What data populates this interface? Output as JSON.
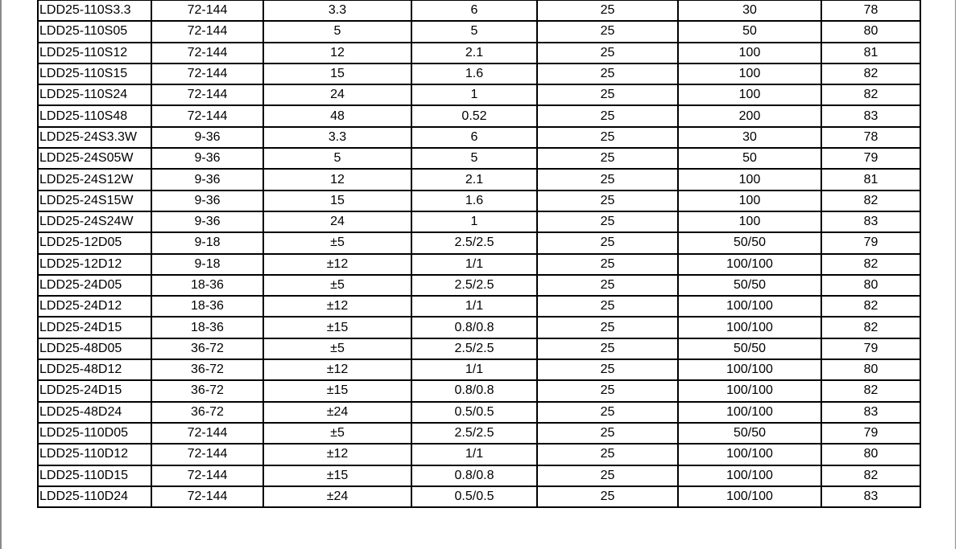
{
  "table": {
    "rows": [
      [
        "LDD25-110S3.3",
        "72-144",
        "3.3",
        "6",
        "25",
        "30",
        "78"
      ],
      [
        "LDD25-110S05",
        "72-144",
        "5",
        "5",
        "25",
        "50",
        "80"
      ],
      [
        "LDD25-110S12",
        "72-144",
        "12",
        "2.1",
        "25",
        "100",
        "81"
      ],
      [
        "LDD25-110S15",
        "72-144",
        "15",
        "1.6",
        "25",
        "100",
        "82"
      ],
      [
        "LDD25-110S24",
        "72-144",
        "24",
        "1",
        "25",
        "100",
        "82"
      ],
      [
        "LDD25-110S48",
        "72-144",
        "48",
        "0.52",
        "25",
        "200",
        "83"
      ],
      [
        "LDD25-24S3.3W",
        "9-36",
        "3.3",
        "6",
        "25",
        "30",
        "78"
      ],
      [
        "LDD25-24S05W",
        "9-36",
        "5",
        "5",
        "25",
        "50",
        "79"
      ],
      [
        "LDD25-24S12W",
        "9-36",
        "12",
        "2.1",
        "25",
        "100",
        "81"
      ],
      [
        "LDD25-24S15W",
        "9-36",
        "15",
        "1.6",
        "25",
        "100",
        "82"
      ],
      [
        "LDD25-24S24W",
        "9-36",
        "24",
        "1",
        "25",
        "100",
        "83"
      ],
      [
        "LDD25-12D05",
        "9-18",
        "±5",
        "2.5/2.5",
        "25",
        "50/50",
        "79"
      ],
      [
        "LDD25-12D12",
        "9-18",
        "±12",
        "1/1",
        "25",
        "100/100",
        "82"
      ],
      [
        "LDD25-24D05",
        "18-36",
        "±5",
        "2.5/2.5",
        "25",
        "50/50",
        "80"
      ],
      [
        "LDD25-24D12",
        "18-36",
        "±12",
        "1/1",
        "25",
        "100/100",
        "82"
      ],
      [
        "LDD25-24D15",
        "18-36",
        "±15",
        "0.8/0.8",
        "25",
        "100/100",
        "82"
      ],
      [
        "LDD25-48D05",
        "36-72",
        "±5",
        "2.5/2.5",
        "25",
        "50/50",
        "79"
      ],
      [
        "LDD25-48D12",
        "36-72",
        "±12",
        "1/1",
        "25",
        "100/100",
        "80"
      ],
      [
        "LDD25-24D15",
        "36-72",
        "±15",
        "0.8/0.8",
        "25",
        "100/100",
        "82"
      ],
      [
        "LDD25-48D24",
        "36-72",
        "±24",
        "0.5/0.5",
        "25",
        "100/100",
        "83"
      ],
      [
        "LDD25-110D05",
        "72-144",
        "±5",
        "2.5/2.5",
        "25",
        "50/50",
        "79"
      ],
      [
        "LDD25-110D12",
        "72-144",
        "±12",
        "1/1",
        "25",
        "100/100",
        "80"
      ],
      [
        "LDD25-110D15",
        "72-144",
        "±15",
        "0.8/0.8",
        "25",
        "100/100",
        "82"
      ],
      [
        "LDD25-110D24",
        "72-144",
        "±24",
        "0.5/0.5",
        "25",
        "100/100",
        "83"
      ]
    ]
  }
}
